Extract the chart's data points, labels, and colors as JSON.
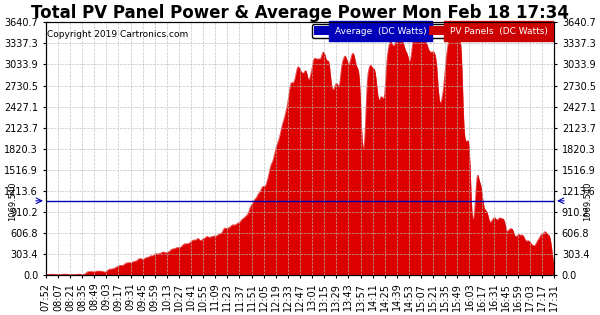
{
  "title": "Total PV Panel Power & Average Power Mon Feb 18 17:34",
  "copyright": "Copyright 2019 Cartronics.com",
  "legend_items": [
    {
      "label": "Average  (DC Watts)",
      "color": "#0000bb"
    },
    {
      "label": "PV Panels  (DC Watts)",
      "color": "#cc0000"
    }
  ],
  "average_value": 1069.54,
  "ylim": [
    0.0,
    3640.7
  ],
  "yticks": [
    0.0,
    303.4,
    606.8,
    910.2,
    1213.6,
    1516.9,
    1820.3,
    2123.7,
    2427.1,
    2730.5,
    3033.9,
    3337.3,
    3640.7
  ],
  "x_tick_labels": [
    "07:52",
    "08:07",
    "08:21",
    "08:35",
    "08:49",
    "09:03",
    "09:17",
    "09:31",
    "09:45",
    "09:59",
    "10:13",
    "10:27",
    "10:41",
    "10:55",
    "11:09",
    "11:23",
    "11:37",
    "11:51",
    "12:05",
    "12:19",
    "12:33",
    "12:47",
    "13:01",
    "13:15",
    "13:29",
    "13:43",
    "13:57",
    "14:11",
    "14:25",
    "14:39",
    "14:53",
    "15:07",
    "15:21",
    "15:35",
    "15:49",
    "16:03",
    "16:17",
    "16:31",
    "16:45",
    "16:59",
    "17:03",
    "17:17",
    "17:31"
  ],
  "background_color": "#ffffff",
  "grid_color": "#bbbbbb",
  "area_color": "#dd0000",
  "avg_line_color": "#0000bb",
  "title_fontsize": 12,
  "tick_fontsize": 7
}
